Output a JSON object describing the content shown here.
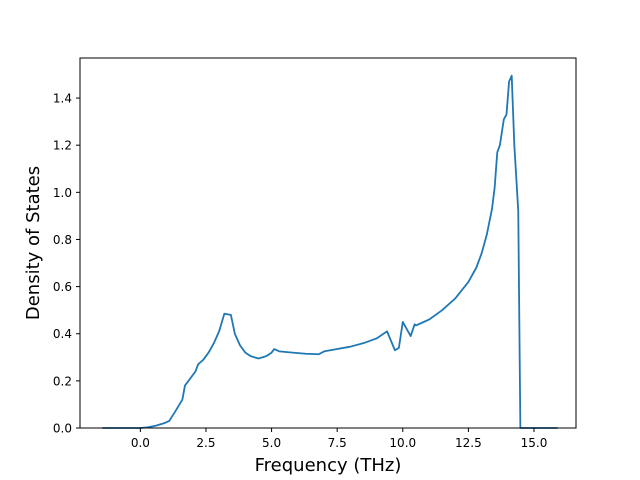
{
  "chart_data": {
    "type": "line",
    "title": "",
    "xlabel": "Frequency (THz)",
    "ylabel": "Density of States",
    "xlim": [
      -2.3,
      16.6
    ],
    "ylim": [
      0.0,
      1.57
    ],
    "grid": false,
    "legend": "none",
    "xticks": [
      0.0,
      2.5,
      5.0,
      7.5,
      10.0,
      12.5,
      15.0
    ],
    "xtick_labels": [
      "0.0",
      "2.5",
      "5.0",
      "7.5",
      "10.0",
      "12.5",
      "15.0"
    ],
    "yticks": [
      0.0,
      0.2,
      0.4,
      0.6,
      0.8,
      1.0,
      1.2,
      1.4
    ],
    "ytick_labels": [
      "0.0",
      "0.2",
      "0.4",
      "0.6",
      "0.8",
      "1.0",
      "1.2",
      "1.4"
    ],
    "series": [
      {
        "color": "#1f77b4",
        "x": [
          -1.45,
          0.0,
          0.3,
          0.6,
          0.9,
          1.1,
          1.3,
          1.6,
          1.7,
          1.9,
          2.1,
          2.2,
          2.4,
          2.6,
          2.8,
          3.0,
          3.2,
          3.45,
          3.6,
          3.8,
          4.0,
          4.2,
          4.5,
          4.8,
          5.0,
          5.1,
          5.3,
          5.8,
          6.3,
          6.8,
          7.0,
          7.5,
          8.0,
          8.5,
          9.0,
          9.4,
          9.7,
          9.85,
          10.0,
          10.1,
          10.3,
          10.45,
          10.5,
          10.7,
          11.0,
          11.5,
          12.0,
          12.5,
          12.8,
          13.0,
          13.2,
          13.4,
          13.5,
          13.6,
          13.7,
          13.85,
          13.95,
          14.05,
          14.15,
          14.25,
          14.4,
          14.48,
          14.55,
          15.0,
          15.9
        ],
        "y": [
          0.0,
          0.0,
          0.003,
          0.01,
          0.02,
          0.03,
          0.065,
          0.12,
          0.18,
          0.21,
          0.24,
          0.27,
          0.29,
          0.32,
          0.36,
          0.41,
          0.485,
          0.48,
          0.4,
          0.35,
          0.32,
          0.305,
          0.295,
          0.305,
          0.32,
          0.335,
          0.325,
          0.32,
          0.315,
          0.313,
          0.325,
          0.335,
          0.345,
          0.36,
          0.38,
          0.41,
          0.33,
          0.34,
          0.45,
          0.43,
          0.39,
          0.44,
          0.435,
          0.445,
          0.46,
          0.5,
          0.55,
          0.62,
          0.68,
          0.74,
          0.82,
          0.93,
          1.02,
          1.17,
          1.2,
          1.31,
          1.33,
          1.47,
          1.495,
          1.2,
          0.92,
          0.0,
          0.0,
          0.0,
          0.0
        ]
      }
    ]
  }
}
